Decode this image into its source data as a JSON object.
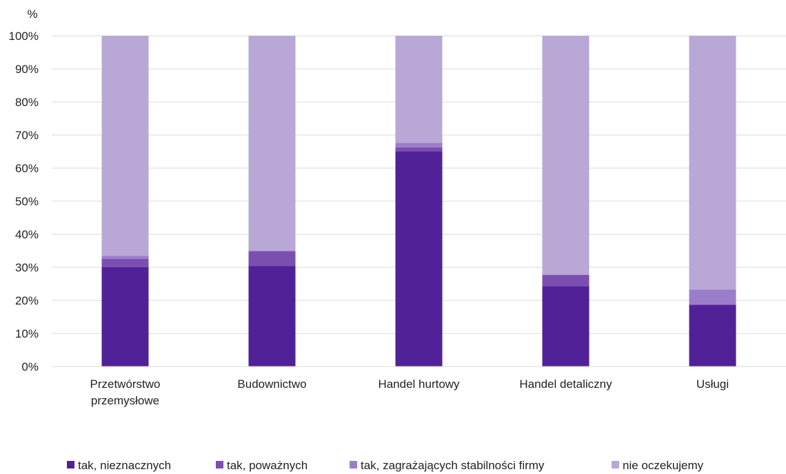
{
  "chart_data": {
    "type": "bar",
    "stacked": true,
    "ylabel": "%",
    "ylim": [
      0,
      100
    ],
    "yticks": [
      "0%",
      "10%",
      "20%",
      "30%",
      "40%",
      "50%",
      "60%",
      "70%",
      "80%",
      "90%",
      "100%"
    ],
    "grid": true,
    "legend_position": "bottom",
    "categories": [
      [
        "Przetwórstwo",
        "przemysłowe"
      ],
      [
        "Budownictwo"
      ],
      [
        "Handel hurtowy"
      ],
      [
        "Handel detaliczny"
      ],
      [
        "Usługi"
      ]
    ],
    "series": [
      {
        "name": "tak, nieznacznych",
        "color": "#512197",
        "values": [
          30,
          30.4,
          65,
          24.3,
          18.7
        ]
      },
      {
        "name": "tak, poważnych",
        "color": "#7a4fb0",
        "values": [
          2.5,
          4.5,
          1.3,
          3.4,
          0
        ]
      },
      {
        "name": "tak, zagrażających stabilności firmy",
        "color": "#9b7dc9",
        "values": [
          1,
          0,
          1.3,
          0,
          4.6
        ]
      },
      {
        "name": "nie oczekujemy",
        "color": "#b9a7d6",
        "values": [
          66.5,
          65.1,
          32.4,
          72.3,
          76.7
        ]
      }
    ]
  }
}
